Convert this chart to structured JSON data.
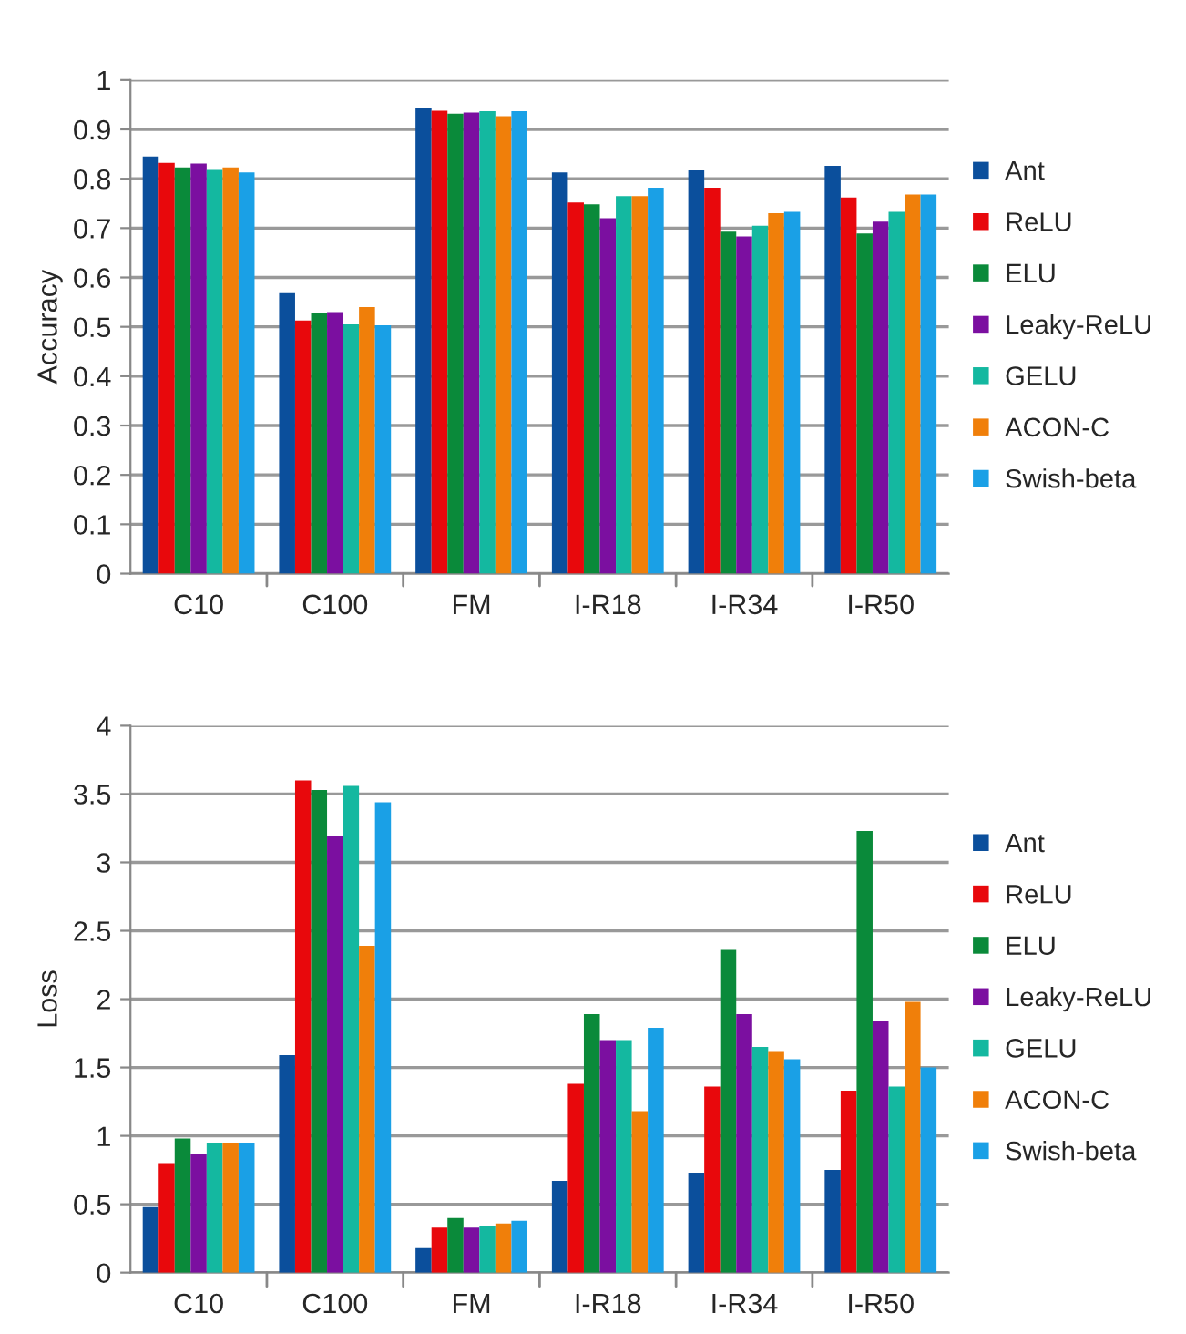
{
  "chart_data": [
    {
      "type": "bar",
      "ylabel": "Accuracy",
      "categories": [
        "C10",
        "C100",
        "FM",
        "I-R18",
        "I-R34",
        "I-R50"
      ],
      "ylim": [
        0,
        1
      ],
      "yticks": [
        0,
        0.1,
        0.2,
        0.3,
        0.4,
        0.5,
        0.6,
        0.7,
        0.8,
        0.9,
        1
      ],
      "grid": "y",
      "legend": "right",
      "series": [
        {
          "name": "Ant",
          "color": "#0b4f9c",
          "values": [
            0.845,
            0.568,
            0.943,
            0.813,
            0.817,
            0.826
          ]
        },
        {
          "name": "ReLU",
          "color": "#e8080c",
          "values": [
            0.832,
            0.513,
            0.938,
            0.752,
            0.782,
            0.762
          ]
        },
        {
          "name": "ELU",
          "color": "#0a8a3a",
          "values": [
            0.823,
            0.527,
            0.932,
            0.748,
            0.693,
            0.689
          ]
        },
        {
          "name": "Leaky-ReLU",
          "color": "#7b0fa0",
          "values": [
            0.831,
            0.53,
            0.934,
            0.72,
            0.683,
            0.713
          ]
        },
        {
          "name": "GELU",
          "color": "#14b8a0",
          "values": [
            0.818,
            0.505,
            0.937,
            0.765,
            0.705,
            0.733
          ]
        },
        {
          "name": "ACON-C",
          "color": "#f07f0a",
          "values": [
            0.823,
            0.54,
            0.927,
            0.765,
            0.73,
            0.768
          ]
        },
        {
          "name": "Swish-beta",
          "color": "#1aa0e6",
          "values": [
            0.813,
            0.503,
            0.937,
            0.782,
            0.733,
            0.768
          ]
        }
      ]
    },
    {
      "type": "bar",
      "ylabel": "Loss",
      "categories": [
        "C10",
        "C100",
        "FM",
        "I-R18",
        "I-R34",
        "I-R50"
      ],
      "ylim": [
        0,
        4
      ],
      "yticks": [
        0,
        0.5,
        1,
        1.5,
        2,
        2.5,
        3,
        3.5,
        4
      ],
      "grid": "y",
      "legend": "right",
      "series": [
        {
          "name": "Ant",
          "color": "#0b4f9c",
          "values": [
            0.48,
            1.59,
            0.18,
            0.67,
            0.73,
            0.75
          ]
        },
        {
          "name": "ReLU",
          "color": "#e8080c",
          "values": [
            0.8,
            3.6,
            0.33,
            1.38,
            1.36,
            1.33
          ]
        },
        {
          "name": "ELU",
          "color": "#0a8a3a",
          "values": [
            0.98,
            3.53,
            0.4,
            1.89,
            2.36,
            3.23
          ]
        },
        {
          "name": "Leaky-ReLU",
          "color": "#7b0fa0",
          "values": [
            0.87,
            3.19,
            0.33,
            1.7,
            1.89,
            1.84
          ]
        },
        {
          "name": "GELU",
          "color": "#14b8a0",
          "values": [
            0.95,
            3.56,
            0.34,
            1.7,
            1.65,
            1.36
          ]
        },
        {
          "name": "ACON-C",
          "color": "#f07f0a",
          "values": [
            0.95,
            2.39,
            0.36,
            1.18,
            1.62,
            1.98
          ]
        },
        {
          "name": "Swish-beta",
          "color": "#1aa0e6",
          "values": [
            0.95,
            3.44,
            0.38,
            1.79,
            1.56,
            1.5
          ]
        }
      ]
    }
  ]
}
